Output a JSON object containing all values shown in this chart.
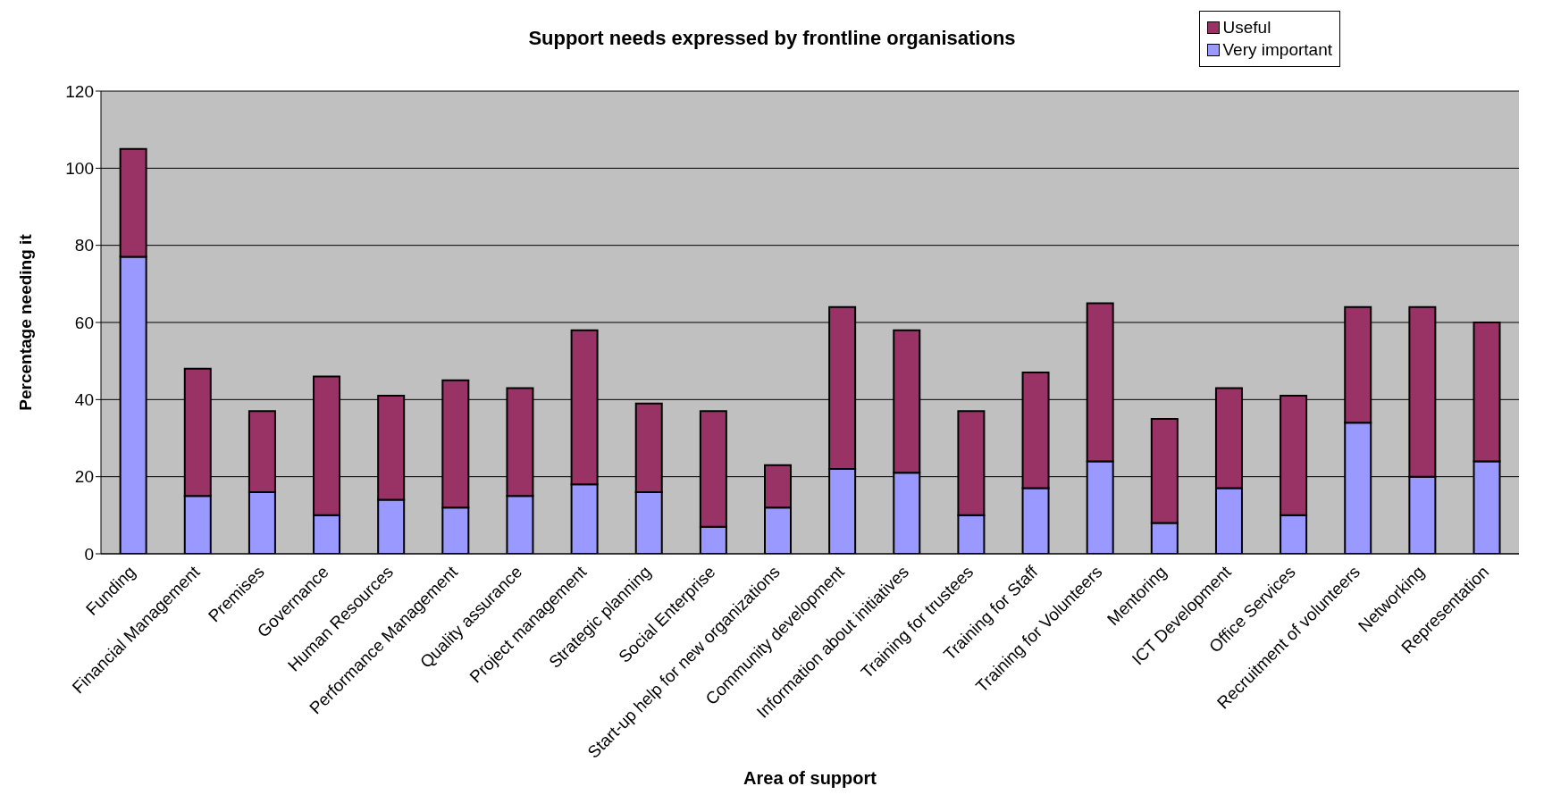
{
  "chart_data": {
    "type": "bar",
    "title": "Support needs expressed by frontline organisations",
    "xlabel": "Area of support",
    "ylabel": "Percentage needing it",
    "categories": [
      "Funding",
      "Financial Management",
      "Premises",
      "Governance",
      "Human Resources",
      "Performance Management",
      "Quality assurance",
      "Project management",
      "Strategic planning",
      "Social Enterprise",
      "Start-up help for new organizations",
      "Community development",
      "Information about  initiatives",
      "Training for trustees",
      "Training for Staff",
      "Training for Volunteers",
      "Mentoring",
      "ICT Development",
      "Office Services",
      "Recruitment of volunteers",
      "Networking",
      "Representation"
    ],
    "series": [
      {
        "name": "Very important",
        "color": "#9999ff",
        "values": [
          77,
          15,
          16,
          10,
          14,
          12,
          15,
          18,
          16,
          7,
          12,
          22,
          21,
          10,
          17,
          24,
          8,
          17,
          10,
          34,
          20,
          24
        ]
      },
      {
        "name": "Useful",
        "color": "#993366",
        "values": [
          28,
          33,
          21,
          36,
          27,
          33,
          28,
          40,
          23,
          30,
          11,
          42,
          37,
          27,
          30,
          41,
          27,
          26,
          31,
          30,
          44,
          36
        ]
      }
    ],
    "stacked": true,
    "ylim": [
      0,
      120
    ],
    "yticks": [
      0,
      20,
      40,
      60,
      80,
      100,
      120
    ],
    "grid": "y",
    "legend": "top right"
  }
}
